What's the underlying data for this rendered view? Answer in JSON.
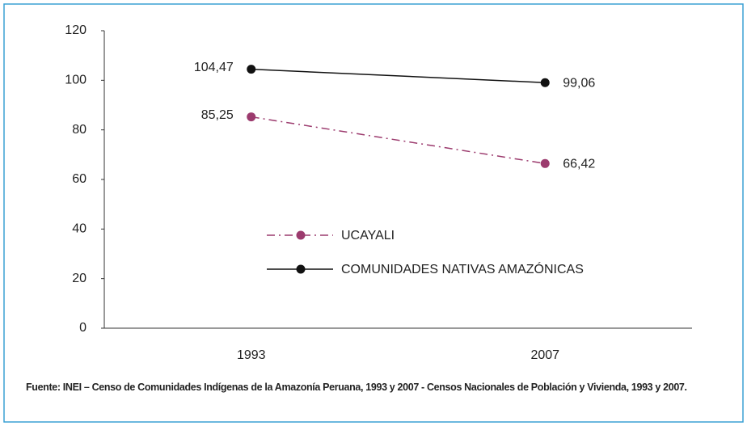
{
  "chart_data": {
    "type": "line",
    "categories": [
      "1993",
      "2007"
    ],
    "series": [
      {
        "name": "UCAYALI",
        "color": "#9c3b6e",
        "line_style": "dashdot",
        "values": [
          85.25,
          66.42
        ],
        "value_labels": [
          "85,25",
          "66,42"
        ]
      },
      {
        "name": "COMUNIDADES NATIVAS AMAZÓNICAS",
        "color": "#111111",
        "line_style": "solid",
        "values": [
          104.47,
          99.06
        ],
        "value_labels": [
          "104,47",
          "99,06"
        ]
      }
    ],
    "ylim": [
      0,
      120
    ],
    "yticks": [
      0,
      20,
      40,
      60,
      80,
      100,
      120
    ],
    "grid": false,
    "source": "Fuente: INEI –  Censo de Comunidades Indígenas de la Amazonía Peruana, 1993 y 2007 - Censos Nacionales de Población y Vivienda, 1993 y 2007."
  }
}
